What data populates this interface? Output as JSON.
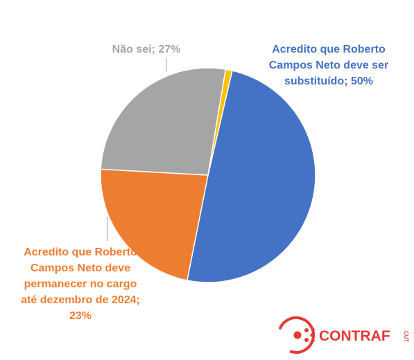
{
  "chart_data": {
    "type": "pie",
    "slices": [
      {
        "label_lines": [
          "Acredito que Roberto",
          "Campos Neto deve ser",
          "substituído; 50%"
        ],
        "value": 50,
        "color": "#4472C4"
      },
      {
        "label_lines": [
          "Acredito que Roberto",
          "Campos Neto deve",
          "permanecer no cargo",
          "até dezembro de 2024;",
          "23%"
        ],
        "value": 23,
        "color": "#ED7D31"
      },
      {
        "label_lines": [
          "Não sei; 27%"
        ],
        "value": 27,
        "color": "#A5A5A5"
      },
      {
        "label_lines": [],
        "value": 1,
        "color": "#FFC000"
      }
    ],
    "legend": "none"
  },
  "logo": {
    "text": "CONTRAF",
    "suffix": "CUT",
    "color": "#E53935"
  }
}
